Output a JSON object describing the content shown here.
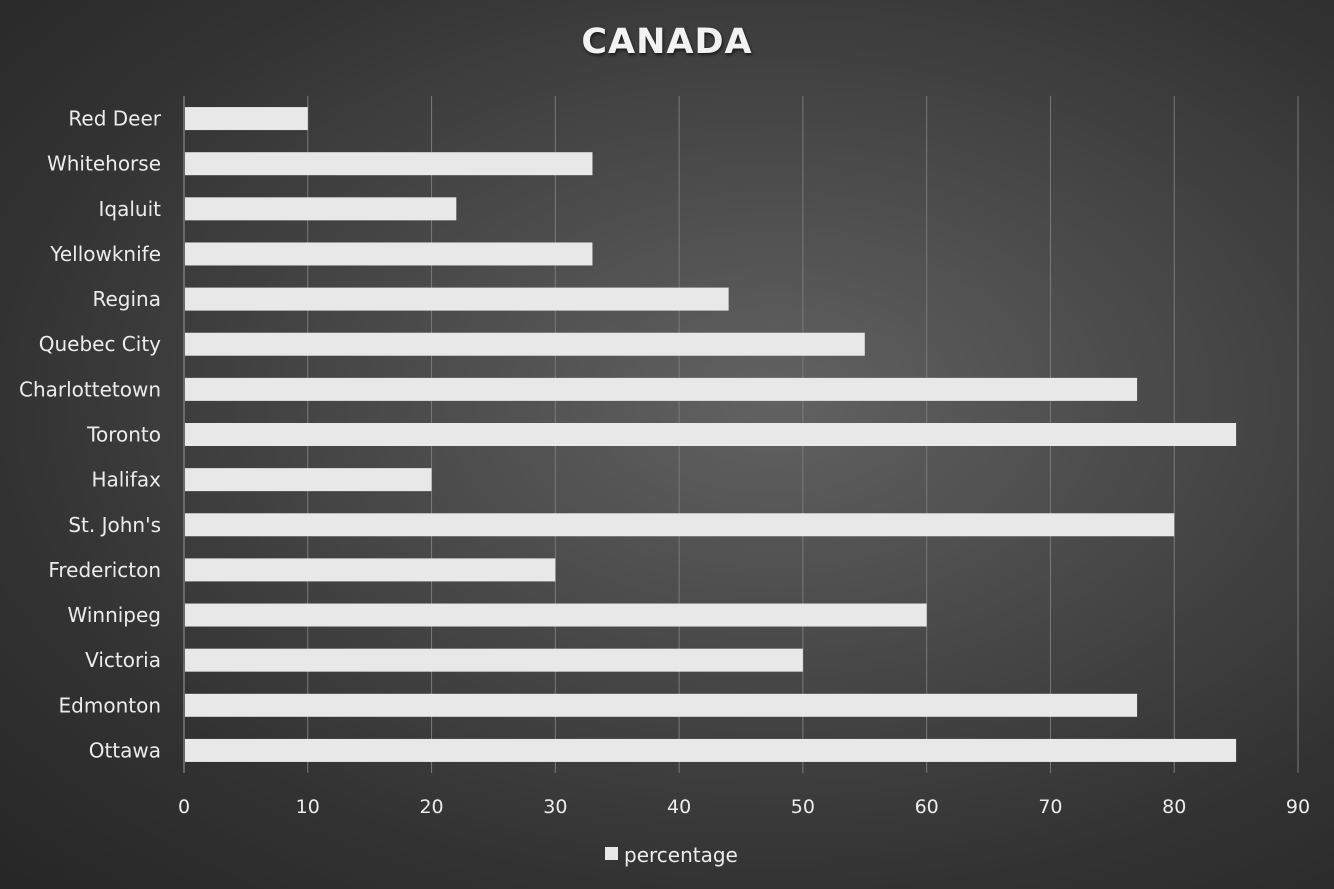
{
  "chart_data": {
    "type": "bar",
    "orientation": "horizontal",
    "title": "CANADA",
    "categories": [
      "Red Deer",
      "Whitehorse",
      "Iqaluit",
      "Yellowknife",
      "Regina",
      "Quebec City",
      "Charlottetown",
      "Toronto",
      "Halifax",
      "St. John's",
      "Fredericton",
      "Winnipeg",
      "Victoria",
      "Edmonton",
      "Ottawa"
    ],
    "series": [
      {
        "name": "percentage",
        "values": [
          10,
          33,
          22,
          33,
          44,
          55,
          77,
          85,
          20,
          80,
          30,
          60,
          50,
          77,
          85
        ]
      }
    ],
    "xlim": [
      0,
      90
    ],
    "xticks": [
      "0",
      "10",
      "20",
      "30",
      "40",
      "50",
      "60",
      "70",
      "80",
      "90"
    ],
    "grid": true,
    "legend_position": "bottom",
    "colors": {
      "bar": "#e8e8e8",
      "grid": "#7a7a7a",
      "text": "#ececec"
    }
  }
}
